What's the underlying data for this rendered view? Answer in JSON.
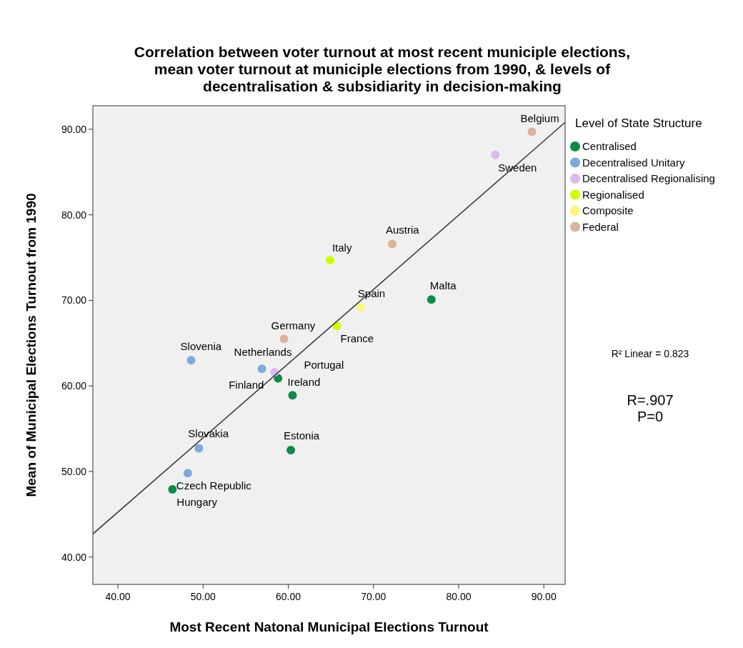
{
  "chart_data": {
    "type": "scatter",
    "title": "Correlation between voter turnout at most recent municiple elections, mean voter turnout at municiple elections from 1990, & levels of decentralisation & subsidiarity in decision-making",
    "xlabel": "Most Recent Natonal Municipal Elections Turnout",
    "ylabel": "Mean of Municipal Elections Turnout from 1990",
    "legend_title": "Level of State Structure",
    "legend": "right",
    "marker": "circle",
    "grid": false,
    "xlim": [
      37.06,
      92.5
    ],
    "ylim": [
      36.8,
      92.75
    ],
    "xticks": [
      {
        "value": 40,
        "label": "40.00"
      },
      {
        "value": 50,
        "label": "50.00"
      },
      {
        "value": 60,
        "label": "60.00"
      },
      {
        "value": 70,
        "label": "70.00"
      },
      {
        "value": 80,
        "label": "80.00"
      },
      {
        "value": 90,
        "label": "90.00"
      }
    ],
    "yticks": [
      {
        "value": 40,
        "label": "40.00"
      },
      {
        "value": 50,
        "label": "50.00"
      },
      {
        "value": 60,
        "label": "60.00"
      },
      {
        "value": 70,
        "label": "70.00"
      },
      {
        "value": 80,
        "label": "80.00"
      },
      {
        "value": 90,
        "label": "90.00"
      }
    ],
    "series": [
      {
        "name": "Centralised",
        "color": "#0f8a47",
        "x": [
          76.8,
          60.5,
          58.8,
          60.3,
          46.4
        ],
        "values": [
          70.1,
          58.9,
          60.9,
          52.5,
          47.9
        ]
      },
      {
        "name": "Decentralised Unitary",
        "color": "#7aabdb",
        "x": [
          48.6,
          56.9,
          49.5,
          48.2
        ],
        "values": [
          63.0,
          62.0,
          52.7,
          49.8
        ]
      },
      {
        "name": "Decentralised Regionalising",
        "color": "#dcb8f0",
        "x": [
          84.3,
          58.4
        ],
        "values": [
          87.0,
          61.6
        ]
      },
      {
        "name": "Regionalised",
        "color": "#ccff00",
        "x": [
          64.9,
          65.7
        ],
        "values": [
          74.7,
          67.0
        ]
      },
      {
        "name": "Composite",
        "color": "#fff57a",
        "x": [
          68.5
        ],
        "values": [
          69.2
        ]
      },
      {
        "name": "Federal",
        "color": "#dcb49b",
        "x": [
          88.6,
          72.2,
          59.5
        ],
        "values": [
          89.7,
          76.6,
          65.5
        ]
      },
      {
        "type": "line",
        "marker": "none",
        "color": "#333333",
        "x": [
          37.06,
          92.5
        ],
        "values": [
          42.7,
          90.8
        ]
      }
    ],
    "annotations": [
      {
        "text": "Malta",
        "x": 76.8,
        "y": 70.1
      },
      {
        "text": "Ireland",
        "x": 60.5,
        "y": 58.9
      },
      {
        "text": "Finland",
        "x": 58.8,
        "y": 60.9
      },
      {
        "text": "Estonia",
        "x": 60.3,
        "y": 52.5
      },
      {
        "text": "Hungary",
        "x": 46.4,
        "y": 47.9
      },
      {
        "text": "Slovenia",
        "x": 48.6,
        "y": 63.0
      },
      {
        "text": "Netherlands",
        "x": 56.9,
        "y": 62.0
      },
      {
        "text": "Slovakia",
        "x": 49.5,
        "y": 52.7
      },
      {
        "text": "Czech Republic",
        "x": 48.2,
        "y": 49.8
      },
      {
        "text": "Sweden",
        "x": 84.3,
        "y": 87.0
      },
      {
        "text": "Portugal",
        "x": 58.4,
        "y": 61.6
      },
      {
        "text": "Italy",
        "x": 64.9,
        "y": 74.7
      },
      {
        "text": "France",
        "x": 65.7,
        "y": 67.0
      },
      {
        "text": "Spain",
        "x": 68.5,
        "y": 69.2
      },
      {
        "text": "Belgium",
        "x": 88.6,
        "y": 89.7
      },
      {
        "text": "Austria",
        "x": 72.2,
        "y": 76.6
      },
      {
        "text": "Germany",
        "x": 59.5,
        "y": 65.5
      },
      "R² Linear = 0.823",
      "R=.907",
      "P=0"
    ]
  }
}
